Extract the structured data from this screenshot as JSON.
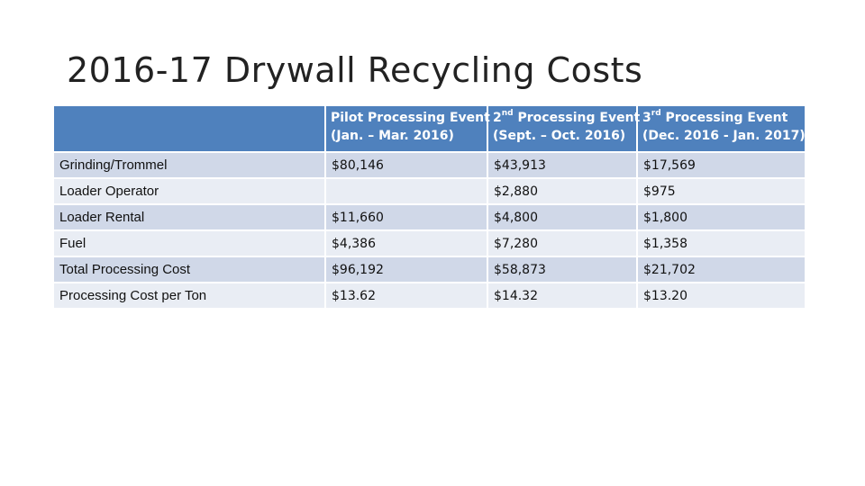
{
  "title": "2016-17 Drywall Recycling Costs",
  "table": {
    "headers": [
      {
        "line1": "",
        "line2": ""
      },
      {
        "line1_prefix": "Pilot Processing Event",
        "sup": "",
        "line1_suffix": "",
        "line2": "(Jan. – Mar. 2016)"
      },
      {
        "line1_prefix": "2",
        "sup": "nd",
        "line1_suffix": " Processing Event",
        "line2": "(Sept. – Oct. 2016)"
      },
      {
        "line1_prefix": "3",
        "sup": "rd",
        "line1_suffix": " Processing Event",
        "line2": "(Dec. 2016 - Jan. 2017)"
      }
    ],
    "rows": [
      {
        "label": "Grinding/Trommel",
        "values": [
          "$80,146",
          "$43,913",
          "$17,569"
        ]
      },
      {
        "label": "Loader Operator",
        "values": [
          "",
          "$2,880",
          "$975"
        ]
      },
      {
        "label": "Loader Rental",
        "values": [
          "$11,660",
          "$4,800",
          "$1,800"
        ]
      },
      {
        "label": "Fuel",
        "values": [
          "$4,386",
          "$7,280",
          "$1,358"
        ]
      },
      {
        "label": "Total Processing Cost",
        "values": [
          "$96,192",
          "$58,873",
          "$21,702"
        ]
      },
      {
        "label": "Processing Cost per Ton",
        "values": [
          "$13.62",
          "$14.32",
          "$13.20"
        ]
      }
    ]
  },
  "colors": {
    "header_bg": "#4f81bd",
    "row_band_dark": "#d0d8e8",
    "row_band_light": "#e9edf4"
  }
}
